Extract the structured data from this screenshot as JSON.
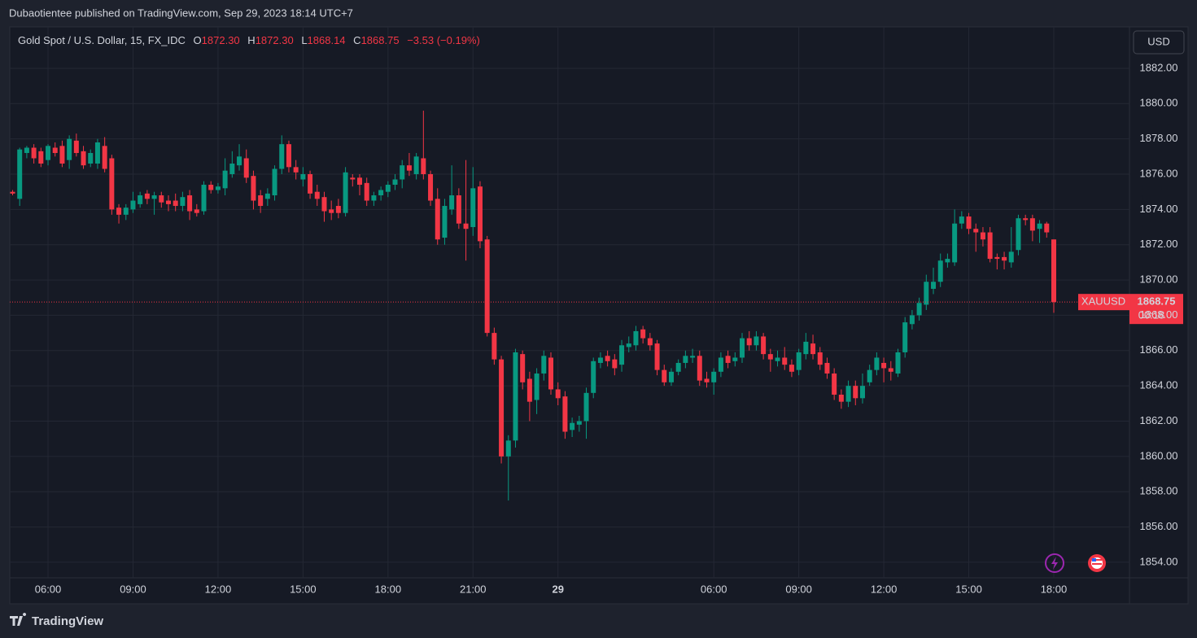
{
  "header": "Dubaotientee published on TradingView.com, Sep 29, 2023 18:14 UTC+7",
  "footer": "TradingView",
  "chart_data": {
    "type": "candlestick",
    "legend": {
      "symbol": "Gold Spot / U.S. Dollar, 15, FX_IDC",
      "o_label": "O",
      "open": {
        "value": 1872.3,
        "label": "1872.30"
      },
      "h_label": "H",
      "high": {
        "value": 1872.3,
        "label": "1872.30"
      },
      "l_label": "L",
      "low": 1868.14,
      "c_label": "C",
      "close": 1868.75,
      "change": {
        "value": -3.53,
        "label": "−3.53"
      },
      "change_pct": {
        "value": -0.19,
        "label": "(−0.19%)"
      }
    },
    "currency": "USD",
    "price_tag": {
      "symbol": "XAUUSD",
      "countdown": "00:18"
    },
    "up_color": "#089981",
    "down_color": "#f23645",
    "grid": true,
    "ylim": [
      1853.12,
      1884.35
    ],
    "yticks": [
      {
        "value": 1854,
        "label": "1854.00"
      },
      {
        "value": 1856,
        "label": "1856.00"
      },
      {
        "value": 1858,
        "label": "1858.00"
      },
      {
        "value": 1860,
        "label": "1860.00"
      },
      {
        "value": 1862,
        "label": "1862.00"
      },
      {
        "value": 1864,
        "label": "1864.00"
      },
      {
        "value": 1866,
        "label": "1866.00"
      },
      {
        "value": 1868,
        "label": "1868.00"
      },
      {
        "value": 1870,
        "label": "1870.00"
      },
      {
        "value": 1872,
        "label": "1872.00"
      },
      {
        "value": 1874,
        "label": "1874.00"
      },
      {
        "value": 1876,
        "label": "1876.00"
      },
      {
        "value": 1878,
        "label": "1878.00"
      },
      {
        "value": 1880,
        "label": "1880.00"
      },
      {
        "value": 1882,
        "label": "1882.00"
      }
    ],
    "categories": [
      null,
      null,
      null,
      null,
      null,
      "06:00",
      null,
      null,
      null,
      null,
      null,
      null,
      null,
      null,
      null,
      null,
      null,
      "09:00",
      null,
      null,
      null,
      null,
      null,
      null,
      null,
      null,
      null,
      null,
      null,
      "12:00",
      null,
      null,
      null,
      null,
      null,
      null,
      null,
      null,
      null,
      null,
      null,
      "15:00",
      null,
      null,
      null,
      null,
      null,
      null,
      null,
      null,
      null,
      null,
      null,
      "18:00",
      null,
      null,
      null,
      null,
      null,
      null,
      null,
      null,
      null,
      null,
      null,
      "21:00",
      null,
      null,
      null,
      null,
      null,
      null,
      null,
      null,
      null,
      null,
      null,
      "29",
      null,
      null,
      null,
      null,
      null,
      null,
      null,
      null,
      null,
      null,
      null,
      null,
      null,
      null,
      null,
      null,
      null,
      null,
      null,
      null,
      null,
      "06:00",
      null,
      null,
      null,
      null,
      null,
      null,
      null,
      null,
      null,
      null,
      null,
      "09:00",
      null,
      null,
      null,
      null,
      null,
      null,
      null,
      null,
      null,
      null,
      null,
      "12:00",
      null,
      null,
      null,
      null,
      null,
      null,
      null,
      null,
      null,
      null,
      null,
      "15:00",
      null,
      null,
      null,
      null,
      null,
      null,
      null,
      null,
      null,
      null,
      null,
      "18:00"
    ],
    "ohlc": [
      [
        1875.0,
        1875.1,
        1874.8,
        1874.9
      ],
      [
        1874.6,
        1877.5,
        1874.2,
        1877.4
      ],
      [
        1877.2,
        1877.6,
        1876.9,
        1877.5
      ],
      [
        1877.5,
        1877.7,
        1876.6,
        1876.9
      ],
      [
        1877.3,
        1877.5,
        1876.4,
        1876.6
      ],
      [
        1876.8,
        1877.7,
        1876.5,
        1877.6
      ],
      [
        1877.5,
        1877.8,
        1877.0,
        1877.2
      ],
      [
        1877.6,
        1877.9,
        1876.4,
        1876.6
      ],
      [
        1876.8,
        1878.2,
        1876.3,
        1878.0
      ],
      [
        1877.9,
        1878.3,
        1877.0,
        1877.2
      ],
      [
        1877.3,
        1877.6,
        1876.3,
        1876.5
      ],
      [
        1876.6,
        1877.4,
        1876.4,
        1877.2
      ],
      [
        1876.6,
        1878.0,
        1876.3,
        1877.8
      ],
      [
        1877.6,
        1878.1,
        1876.1,
        1876.3
      ],
      [
        1876.9,
        1877.1,
        1873.7,
        1874.0
      ],
      [
        1874.1,
        1874.3,
        1873.2,
        1873.7
      ],
      [
        1873.7,
        1874.3,
        1873.4,
        1874.1
      ],
      [
        1874.0,
        1875.0,
        1873.8,
        1874.5
      ],
      [
        1874.3,
        1875.0,
        1874.1,
        1874.8
      ],
      [
        1874.9,
        1875.1,
        1874.3,
        1874.6
      ],
      [
        1874.6,
        1875.0,
        1873.7,
        1874.8
      ],
      [
        1874.8,
        1875.0,
        1874.1,
        1874.4
      ],
      [
        1874.5,
        1874.8,
        1873.9,
        1874.3
      ],
      [
        1874.5,
        1874.9,
        1873.9,
        1874.2
      ],
      [
        1874.2,
        1875.0,
        1873.9,
        1874.7
      ],
      [
        1874.8,
        1875.1,
        1873.4,
        1873.9
      ],
      [
        1874.0,
        1874.3,
        1873.6,
        1873.8
      ],
      [
        1873.9,
        1875.6,
        1873.7,
        1875.4
      ],
      [
        1875.4,
        1875.6,
        1874.9,
        1875.1
      ],
      [
        1875.1,
        1875.5,
        1874.9,
        1875.3
      ],
      [
        1875.2,
        1876.9,
        1874.8,
        1876.2
      ],
      [
        1876.0,
        1877.3,
        1875.8,
        1876.6
      ],
      [
        1876.5,
        1877.7,
        1876.2,
        1877.0
      ],
      [
        1876.9,
        1877.4,
        1875.5,
        1875.8
      ],
      [
        1875.9,
        1876.2,
        1874.0,
        1874.5
      ],
      [
        1874.8,
        1875.1,
        1873.8,
        1874.2
      ],
      [
        1874.6,
        1875.2,
        1874.2,
        1874.9
      ],
      [
        1874.8,
        1876.5,
        1874.5,
        1876.3
      ],
      [
        1876.3,
        1878.2,
        1876.0,
        1877.7
      ],
      [
        1877.7,
        1877.9,
        1876.1,
        1876.4
      ],
      [
        1876.4,
        1876.8,
        1875.7,
        1876.1
      ],
      [
        1875.7,
        1876.4,
        1875.3,
        1876.0
      ],
      [
        1876.0,
        1876.2,
        1874.6,
        1874.9
      ],
      [
        1875.0,
        1875.4,
        1874.2,
        1874.6
      ],
      [
        1874.7,
        1875.0,
        1873.3,
        1873.9
      ],
      [
        1874.0,
        1874.5,
        1873.4,
        1873.8
      ],
      [
        1874.2,
        1874.6,
        1873.5,
        1873.8
      ],
      [
        1873.8,
        1876.4,
        1873.6,
        1876.1
      ],
      [
        1875.8,
        1876.0,
        1875.3,
        1875.7
      ],
      [
        1875.8,
        1876.0,
        1874.8,
        1875.4
      ],
      [
        1875.5,
        1875.8,
        1874.2,
        1874.5
      ],
      [
        1874.5,
        1875.0,
        1874.2,
        1874.8
      ],
      [
        1874.8,
        1875.3,
        1874.5,
        1875.1
      ],
      [
        1875.0,
        1875.6,
        1874.7,
        1875.4
      ],
      [
        1875.4,
        1876.0,
        1875.1,
        1875.7
      ],
      [
        1875.7,
        1876.8,
        1875.2,
        1876.5
      ],
      [
        1876.5,
        1877.2,
        1875.9,
        1876.2
      ],
      [
        1876.0,
        1877.2,
        1875.7,
        1877.0
      ],
      [
        1876.9,
        1879.6,
        1875.7,
        1876.0
      ],
      [
        1876.0,
        1876.2,
        1874.2,
        1874.5
      ],
      [
        1874.6,
        1875.2,
        1872.0,
        1872.3
      ],
      [
        1872.4,
        1874.6,
        1872.0,
        1874.2
      ],
      [
        1874.0,
        1876.5,
        1873.7,
        1874.8
      ],
      [
        1874.8,
        1875.2,
        1872.9,
        1873.2
      ],
      [
        1873.2,
        1876.8,
        1871.1,
        1872.9
      ],
      [
        1873.0,
        1876.4,
        1872.5,
        1875.2
      ],
      [
        1875.3,
        1875.6,
        1871.8,
        1872.2
      ],
      [
        1872.3,
        1872.5,
        1866.8,
        1867.0
      ],
      [
        1867.0,
        1867.3,
        1865.2,
        1865.5
      ],
      [
        1865.5,
        1865.7,
        1859.6,
        1860.0
      ],
      [
        1860.0,
        1861.2,
        1857.5,
        1860.9
      ],
      [
        1860.9,
        1866.1,
        1860.5,
        1865.9
      ],
      [
        1865.8,
        1866.0,
        1863.8,
        1864.2
      ],
      [
        1864.4,
        1864.8,
        1862.0,
        1863.1
      ],
      [
        1863.2,
        1865.0,
        1862.4,
        1864.7
      ],
      [
        1864.7,
        1866.0,
        1864.3,
        1865.7
      ],
      [
        1865.6,
        1865.9,
        1863.5,
        1863.8
      ],
      [
        1863.8,
        1864.2,
        1862.9,
        1863.3
      ],
      [
        1863.4,
        1863.7,
        1861.0,
        1861.4
      ],
      [
        1861.5,
        1862.2,
        1861.1,
        1861.9
      ],
      [
        1861.8,
        1862.3,
        1861.4,
        1862.0
      ],
      [
        1862.0,
        1863.9,
        1861.0,
        1863.6
      ],
      [
        1863.6,
        1865.6,
        1863.3,
        1865.4
      ],
      [
        1865.3,
        1865.9,
        1865.0,
        1865.6
      ],
      [
        1865.7,
        1866.0,
        1865.1,
        1865.4
      ],
      [
        1865.5,
        1865.8,
        1864.6,
        1865.0
      ],
      [
        1865.2,
        1866.6,
        1864.8,
        1866.3
      ],
      [
        1866.2,
        1866.8,
        1865.9,
        1866.4
      ],
      [
        1866.3,
        1867.4,
        1866.0,
        1867.1
      ],
      [
        1867.2,
        1867.4,
        1866.4,
        1866.7
      ],
      [
        1866.7,
        1867.0,
        1866.0,
        1866.3
      ],
      [
        1866.4,
        1866.6,
        1864.6,
        1864.9
      ],
      [
        1864.9,
        1865.2,
        1864.0,
        1864.2
      ],
      [
        1864.2,
        1865.0,
        1864.0,
        1864.8
      ],
      [
        1864.8,
        1865.5,
        1864.6,
        1865.3
      ],
      [
        1865.3,
        1866.0,
        1865.0,
        1865.7
      ],
      [
        1865.6,
        1866.1,
        1865.3,
        1865.7
      ],
      [
        1865.7,
        1866.0,
        1864.0,
        1864.3
      ],
      [
        1864.4,
        1864.8,
        1863.9,
        1864.2
      ],
      [
        1864.2,
        1865.0,
        1863.5,
        1864.8
      ],
      [
        1864.8,
        1865.9,
        1864.5,
        1865.6
      ],
      [
        1865.7,
        1866.0,
        1865.0,
        1865.3
      ],
      [
        1865.4,
        1865.9,
        1865.1,
        1865.6
      ],
      [
        1865.6,
        1867.0,
        1865.3,
        1866.7
      ],
      [
        1866.7,
        1867.1,
        1866.0,
        1866.3
      ],
      [
        1866.3,
        1867.1,
        1866.0,
        1866.8
      ],
      [
        1866.8,
        1867.0,
        1865.5,
        1865.8
      ],
      [
        1865.8,
        1866.1,
        1864.8,
        1865.5
      ],
      [
        1865.4,
        1866.0,
        1865.1,
        1865.6
      ],
      [
        1865.6,
        1866.2,
        1864.9,
        1865.2
      ],
      [
        1865.2,
        1865.5,
        1864.5,
        1864.8
      ],
      [
        1864.9,
        1866.1,
        1864.6,
        1865.9
      ],
      [
        1865.8,
        1867.0,
        1865.5,
        1866.5
      ],
      [
        1866.4,
        1866.9,
        1865.5,
        1865.8
      ],
      [
        1865.9,
        1866.2,
        1864.9,
        1865.2
      ],
      [
        1865.3,
        1865.6,
        1864.4,
        1864.7
      ],
      [
        1864.7,
        1865.0,
        1863.2,
        1863.5
      ],
      [
        1863.5,
        1863.8,
        1862.7,
        1863.1
      ],
      [
        1863.1,
        1864.3,
        1862.8,
        1864.0
      ],
      [
        1864.0,
        1864.3,
        1862.9,
        1863.3
      ],
      [
        1863.3,
        1864.7,
        1863.0,
        1864.0
      ],
      [
        1864.2,
        1865.2,
        1864.0,
        1864.9
      ],
      [
        1864.9,
        1865.9,
        1864.6,
        1865.6
      ],
      [
        1865.3,
        1865.6,
        1864.2,
        1865.0
      ],
      [
        1865.0,
        1865.4,
        1864.3,
        1864.8
      ],
      [
        1864.7,
        1866.1,
        1864.5,
        1865.9
      ],
      [
        1865.9,
        1867.9,
        1865.6,
        1867.6
      ],
      [
        1867.5,
        1868.3,
        1867.2,
        1868.0
      ],
      [
        1868.0,
        1869.0,
        1867.7,
        1868.7
      ],
      [
        1868.6,
        1870.3,
        1868.3,
        1869.9
      ],
      [
        1869.5,
        1870.7,
        1869.2,
        1869.9
      ],
      [
        1869.9,
        1871.5,
        1869.6,
        1871.1
      ],
      [
        1871.0,
        1871.5,
        1870.7,
        1871.2
      ],
      [
        1871.0,
        1874.0,
        1870.8,
        1873.2
      ],
      [
        1873.2,
        1873.9,
        1872.9,
        1873.6
      ],
      [
        1873.6,
        1873.8,
        1872.6,
        1872.9
      ],
      [
        1872.9,
        1873.2,
        1871.6,
        1872.7
      ],
      [
        1872.7,
        1873.0,
        1871.9,
        1872.3
      ],
      [
        1872.7,
        1873.0,
        1871.0,
        1871.2
      ],
      [
        1871.3,
        1871.5,
        1870.6,
        1871.2
      ],
      [
        1871.3,
        1871.6,
        1870.6,
        1871.1
      ],
      [
        1871.0,
        1873.0,
        1870.7,
        1871.6
      ],
      [
        1871.7,
        1873.7,
        1871.4,
        1873.5
      ],
      [
        1873.5,
        1873.7,
        1873.1,
        1873.4
      ],
      [
        1873.5,
        1873.7,
        1872.2,
        1872.8
      ],
      [
        1872.9,
        1873.4,
        1872.1,
        1873.2
      ],
      [
        1873.2,
        1873.3,
        1872.4,
        1872.7
      ],
      [
        1872.3,
        1872.3,
        1868.14,
        1868.75
      ]
    ]
  }
}
